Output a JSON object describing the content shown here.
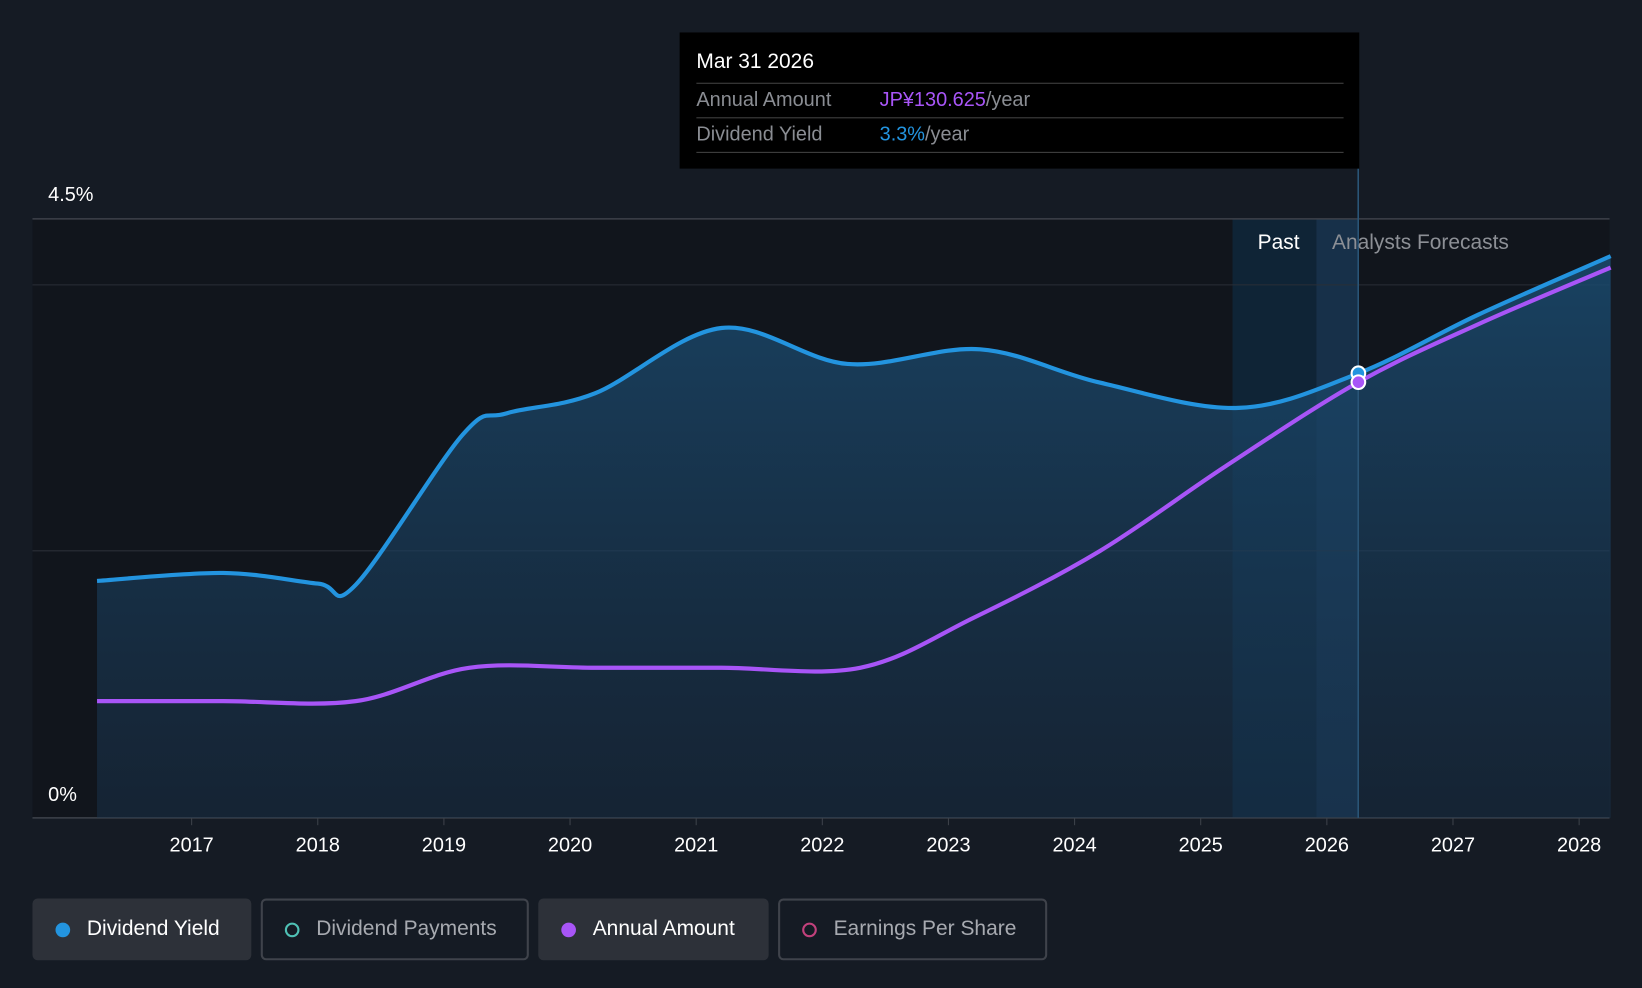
{
  "tooltip": {
    "date": "Mar 31 2026",
    "rows": [
      {
        "label": "Annual Amount",
        "value": "JP¥130.625",
        "unit": "/year",
        "color": "#a855f7"
      },
      {
        "label": "Dividend Yield",
        "value": "3.3%",
        "unit": "/year",
        "color": "#2394df"
      }
    ]
  },
  "regions": {
    "past": "Past",
    "forecast": "Analysts Forecasts"
  },
  "legend": [
    {
      "label": "Dividend Yield",
      "color": "#2394df",
      "active": true
    },
    {
      "label": "Dividend Payments",
      "color": "#4fc1b5",
      "active": false
    },
    {
      "label": "Annual Amount",
      "color": "#a855f7",
      "active": true
    },
    {
      "label": "Earnings Per Share",
      "color": "#c2417c",
      "active": false
    }
  ],
  "chart_data": {
    "type": "line",
    "title": "",
    "y_tick_labels": [
      "4.5%",
      "0%"
    ],
    "ylim": [
      0,
      4.5
    ],
    "x_tick_labels": [
      "2017",
      "2018",
      "2019",
      "2020",
      "2021",
      "2022",
      "2023",
      "2024",
      "2025",
      "2026",
      "2027",
      "2028"
    ],
    "xlim": [
      2016,
      2028.25
    ],
    "past_forecast_boundary": 2025.9,
    "hover_x": 2026.25,
    "series": [
      {
        "name": "Dividend Yield",
        "unit": "%",
        "color": "#2394df",
        "x": [
          2016.25,
          2017.25,
          2018.0,
          2018.3,
          2019.15,
          2019.5,
          2020.2,
          2021.2,
          2022.2,
          2023.25,
          2024.2,
          2025.3,
          2026.25,
          2027.2,
          2028.25
        ],
        "values": [
          1.78,
          1.84,
          1.76,
          1.75,
          2.88,
          3.04,
          3.19,
          3.68,
          3.41,
          3.52,
          3.27,
          3.08,
          3.34,
          3.78,
          4.22
        ]
      },
      {
        "name": "Annual Amount",
        "unit": "JP¥",
        "color": "#a855f7",
        "x": [
          2016.25,
          2017.25,
          2018.3,
          2019.2,
          2020.2,
          2021.2,
          2022.3,
          2023.2,
          2024.2,
          2025.2,
          2026.25,
          2027.2,
          2028.25
        ],
        "values": [
          35,
          35,
          35,
          45,
          45,
          45,
          45,
          60,
          80,
          105.5,
          130.625,
          148,
          165
        ]
      }
    ]
  }
}
